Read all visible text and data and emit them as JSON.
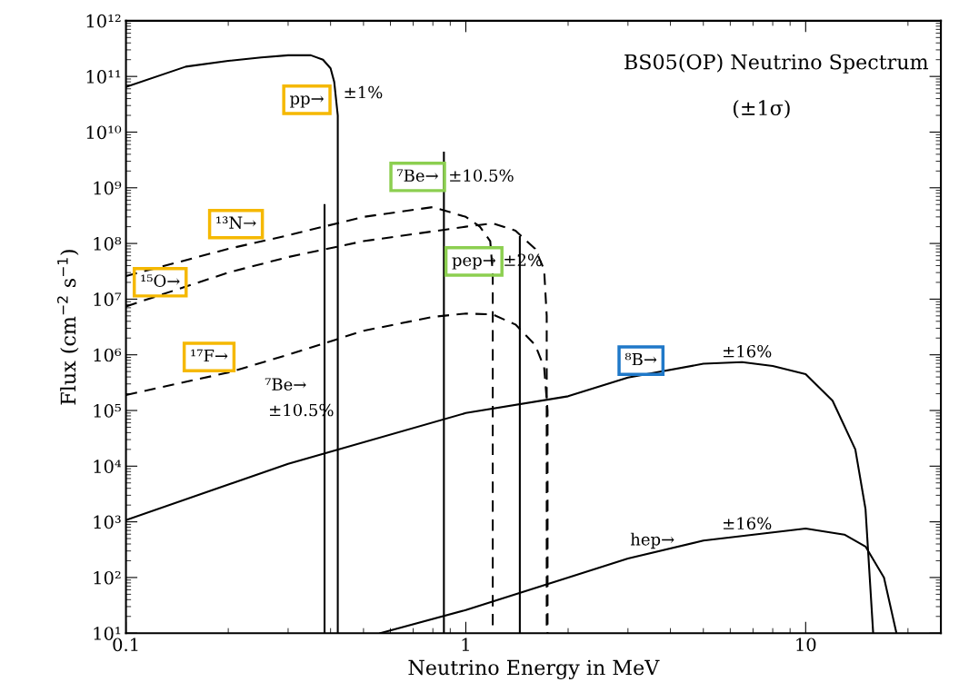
{
  "chart_data": {
    "type": "line",
    "title": "BS05(OP) Neutrino Spectrum",
    "subtitle": "(±1σ)",
    "xlabel": "Neutrino Energy in MeV",
    "ylabel": "Flux (cm$^{−2}$ s$^{−1}$)",
    "log": "xy",
    "xlim": [
      0.1,
      25
    ],
    "xticks": [
      0.1,
      1,
      10
    ],
    "ylim": [
      10,
      1000000000000.0
    ],
    "yticks": [
      {
        "value": 10,
        "label": "10¹"
      },
      {
        "value": 100,
        "label": "10²"
      },
      {
        "value": 1000,
        "label": "10³"
      },
      {
        "value": 10000,
        "label": "10⁴"
      },
      {
        "value": 100000,
        "label": "10⁵"
      },
      {
        "value": 1000000,
        "label": "10⁶"
      },
      {
        "value": 10000000,
        "label": "10⁷"
      },
      {
        "value": 100000000,
        "label": "10⁸"
      },
      {
        "value": 1000000000,
        "label": "10⁹"
      },
      {
        "value": 10000000000,
        "label": "10¹⁰"
      },
      {
        "value": 100000000000,
        "label": "10¹¹"
      },
      {
        "value": 1000000000000,
        "label": "10¹²"
      }
    ],
    "grid": false,
    "legend": false,
    "marker": "none",
    "series": [
      {
        "color": "#000000",
        "line_style": "solid",
        "x": [
          0.1,
          0.15,
          0.2,
          0.25,
          0.3,
          0.35,
          0.38,
          0.4,
          0.41,
          0.42,
          0.42
        ],
        "values": [
          65000000000.0,
          150000000000.0,
          190000000000.0,
          220000000000.0,
          240000000000.0,
          240000000000.0,
          200000000000.0,
          140000000000.0,
          80000000000.0,
          20000000000.0,
          10
        ]
      },
      {
        "color": "#000000",
        "line_style": "dashed",
        "x": [
          0.1,
          0.2,
          0.3,
          0.5,
          0.8,
          1.0,
          1.1,
          1.18,
          1.2,
          1.2
        ],
        "values": [
          26000000.0,
          80000000.0,
          140000000.0,
          300000000.0,
          450000000.0,
          300000000.0,
          200000000.0,
          110000000.0,
          30000000.0,
          10
        ]
      },
      {
        "color": "#000000",
        "line_style": "dashed",
        "x": [
          0.1,
          0.2,
          0.3,
          0.5,
          1.0,
          1.2,
          1.4,
          1.6,
          1.7,
          1.73,
          1.73
        ],
        "values": [
          7400000.0,
          30000000.0,
          57000000.0,
          110000000.0,
          200000000.0,
          230000000.0,
          170000000.0,
          80000000.0,
          34000000.0,
          5000000.0,
          10
        ]
      },
      {
        "color": "#000000",
        "line_style": "dashed",
        "x": [
          0.1,
          0.2,
          0.3,
          0.5,
          0.8,
          1.0,
          1.2,
          1.4,
          1.6,
          1.7,
          1.74,
          1.74
        ],
        "values": [
          190000.0,
          480000.0,
          1000000.0,
          2700000.0,
          4800000.0,
          5500000.0,
          5300000.0,
          3500000.0,
          1500000.0,
          600000.0,
          100000.0,
          10
        ]
      },
      {
        "color": "#000000",
        "line_style": "solid",
        "x": [
          0.1,
          0.3,
          1,
          2,
          3,
          5,
          6.5,
          8,
          10,
          12,
          14,
          15,
          15.8
        ],
        "values": [
          1070.0,
          11000.0,
          90000.0,
          180000.0,
          390000.0,
          690000.0,
          740000.0,
          630000.0,
          450000.0,
          150000.0,
          20000.0,
          1700.0,
          10
        ]
      },
      {
        "color": "#000000",
        "line_style": "solid",
        "x": [
          0.56,
          1,
          2,
          3,
          5,
          10,
          13,
          15,
          17,
          18.5
        ],
        "values": [
          10,
          26,
          100,
          220,
          460,
          760,
          590,
          360,
          100,
          10
        ]
      },
      {
        "color": "#000000",
        "line_style": "solid",
        "x": [
          0.384,
          0.384
        ],
        "values": [
          10,
          490000000.0
        ]
      },
      {
        "color": "#000000",
        "line_style": "solid",
        "x": [
          0.862,
          0.862
        ],
        "values": [
          10,
          4300000000.0
        ]
      },
      {
        "color": "#000000",
        "line_style": "solid",
        "x": [
          1.442,
          1.442
        ],
        "values": [
          10,
          130000000.0
        ]
      }
    ],
    "annotations": [
      "pp→",
      "±1%",
      "⁷Be→",
      "±10.5%",
      "¹³N→",
      "¹⁵O→",
      "pep→",
      "±2%",
      "¹⁷F→",
      "⁷Be→",
      "±10.5%",
      "⁸B→",
      "±16%",
      "hep→",
      "±16%"
    ]
  }
}
